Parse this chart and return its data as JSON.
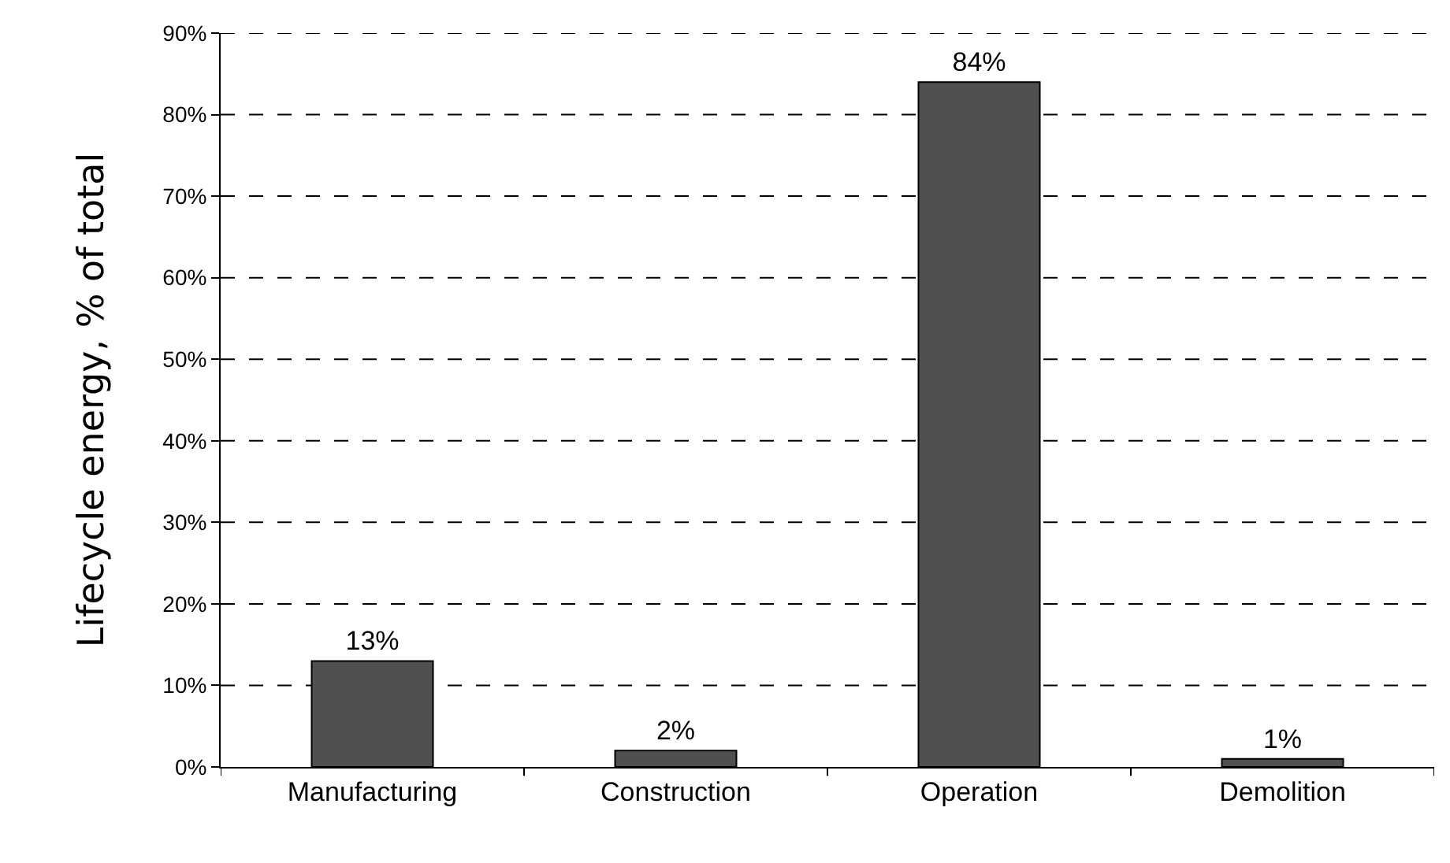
{
  "chart_data": {
    "type": "bar",
    "ylabel": "Lifecycle energy, % of total",
    "categories": [
      "Manufacturing",
      "Construction",
      "Operation",
      "Demolition"
    ],
    "values": [
      13,
      2,
      84,
      1
    ],
    "value_labels": [
      "13%",
      "2%",
      "84%",
      "1%"
    ],
    "color": "#505050",
    "ylim": [
      0,
      90
    ],
    "yticks": [
      {
        "value": 0,
        "label": "0%"
      },
      {
        "value": 10,
        "label": "10%"
      },
      {
        "value": 20,
        "label": "20%"
      },
      {
        "value": 30,
        "label": "30%"
      },
      {
        "value": 40,
        "label": "40%"
      },
      {
        "value": 50,
        "label": "50%"
      },
      {
        "value": 60,
        "label": "60%"
      },
      {
        "value": 70,
        "label": "70%"
      },
      {
        "value": 80,
        "label": "80%"
      },
      {
        "value": 90,
        "label": "90%"
      }
    ],
    "grid": "y",
    "legend": false
  }
}
